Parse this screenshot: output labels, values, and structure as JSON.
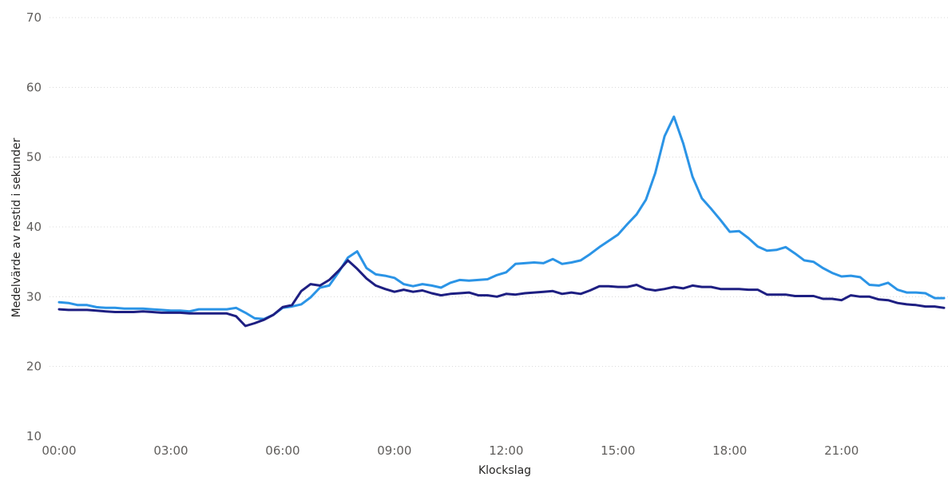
{
  "chart_data": {
    "type": "line",
    "title": "",
    "xlabel": "Klockslag",
    "ylabel": "Medelvärde av restid i sekunder",
    "ylim": [
      10,
      70
    ],
    "yticks": [
      10,
      20,
      30,
      40,
      50,
      60,
      70
    ],
    "xticks": [
      "00:00",
      "03:00",
      "06:00",
      "09:00",
      "12:00",
      "15:00",
      "18:00",
      "21:00"
    ],
    "grid": true,
    "x_start_hours": 0,
    "x_step_hours": 0.25,
    "series": [
      {
        "color": "#2b94e6",
        "values": [
          29.2,
          29.1,
          28.8,
          28.8,
          28.5,
          28.4,
          28.4,
          28.3,
          28.3,
          28.3,
          28.2,
          28.1,
          28.0,
          28.0,
          27.9,
          28.2,
          28.2,
          28.2,
          28.2,
          28.4,
          27.7,
          26.9,
          26.8,
          27.4,
          28.4,
          28.6,
          28.9,
          29.9,
          31.3,
          31.6,
          33.5,
          35.6,
          36.5,
          34.1,
          33.2,
          33.0,
          32.7,
          31.8,
          31.5,
          31.8,
          31.6,
          31.3,
          32.0,
          32.4,
          32.3,
          32.4,
          32.5,
          33.1,
          33.5,
          34.7,
          34.8,
          34.9,
          34.8,
          35.4,
          34.7,
          34.9,
          35.2,
          36.1,
          37.1,
          38.0,
          38.9,
          40.4,
          41.8,
          43.9,
          47.7,
          53.0,
          55.8,
          52.0,
          47.2,
          44.1,
          42.6,
          41.0,
          39.3,
          39.4,
          38.4,
          37.2,
          36.6,
          36.7,
          37.1,
          36.2,
          35.2,
          35.0,
          34.1,
          33.4,
          32.9,
          33.0,
          32.8,
          31.7,
          31.6,
          32.0,
          31.0,
          30.6,
          30.6,
          30.5,
          29.8,
          29.8
        ]
      },
      {
        "color": "#1e1f82",
        "values": [
          28.2,
          28.1,
          28.1,
          28.1,
          28.0,
          27.9,
          27.8,
          27.8,
          27.8,
          27.9,
          27.8,
          27.7,
          27.7,
          27.7,
          27.6,
          27.6,
          27.6,
          27.6,
          27.6,
          27.2,
          25.8,
          26.2,
          26.7,
          27.4,
          28.5,
          28.8,
          30.8,
          31.8,
          31.6,
          32.4,
          33.7,
          35.2,
          34.0,
          32.6,
          31.6,
          31.1,
          30.7,
          31.0,
          30.7,
          30.9,
          30.5,
          30.2,
          30.4,
          30.5,
          30.6,
          30.2,
          30.2,
          30.0,
          30.4,
          30.3,
          30.5,
          30.6,
          30.7,
          30.8,
          30.4,
          30.6,
          30.4,
          30.9,
          31.5,
          31.5,
          31.4,
          31.4,
          31.7,
          31.1,
          30.9,
          31.1,
          31.4,
          31.2,
          31.6,
          31.4,
          31.4,
          31.1,
          31.1,
          31.1,
          31.0,
          31.0,
          30.3,
          30.3,
          30.3,
          30.1,
          30.1,
          30.1,
          29.7,
          29.7,
          29.5,
          30.2,
          30.0,
          30.0,
          29.6,
          29.5,
          29.1,
          28.9,
          28.8,
          28.6,
          28.6,
          28.4
        ]
      }
    ]
  }
}
